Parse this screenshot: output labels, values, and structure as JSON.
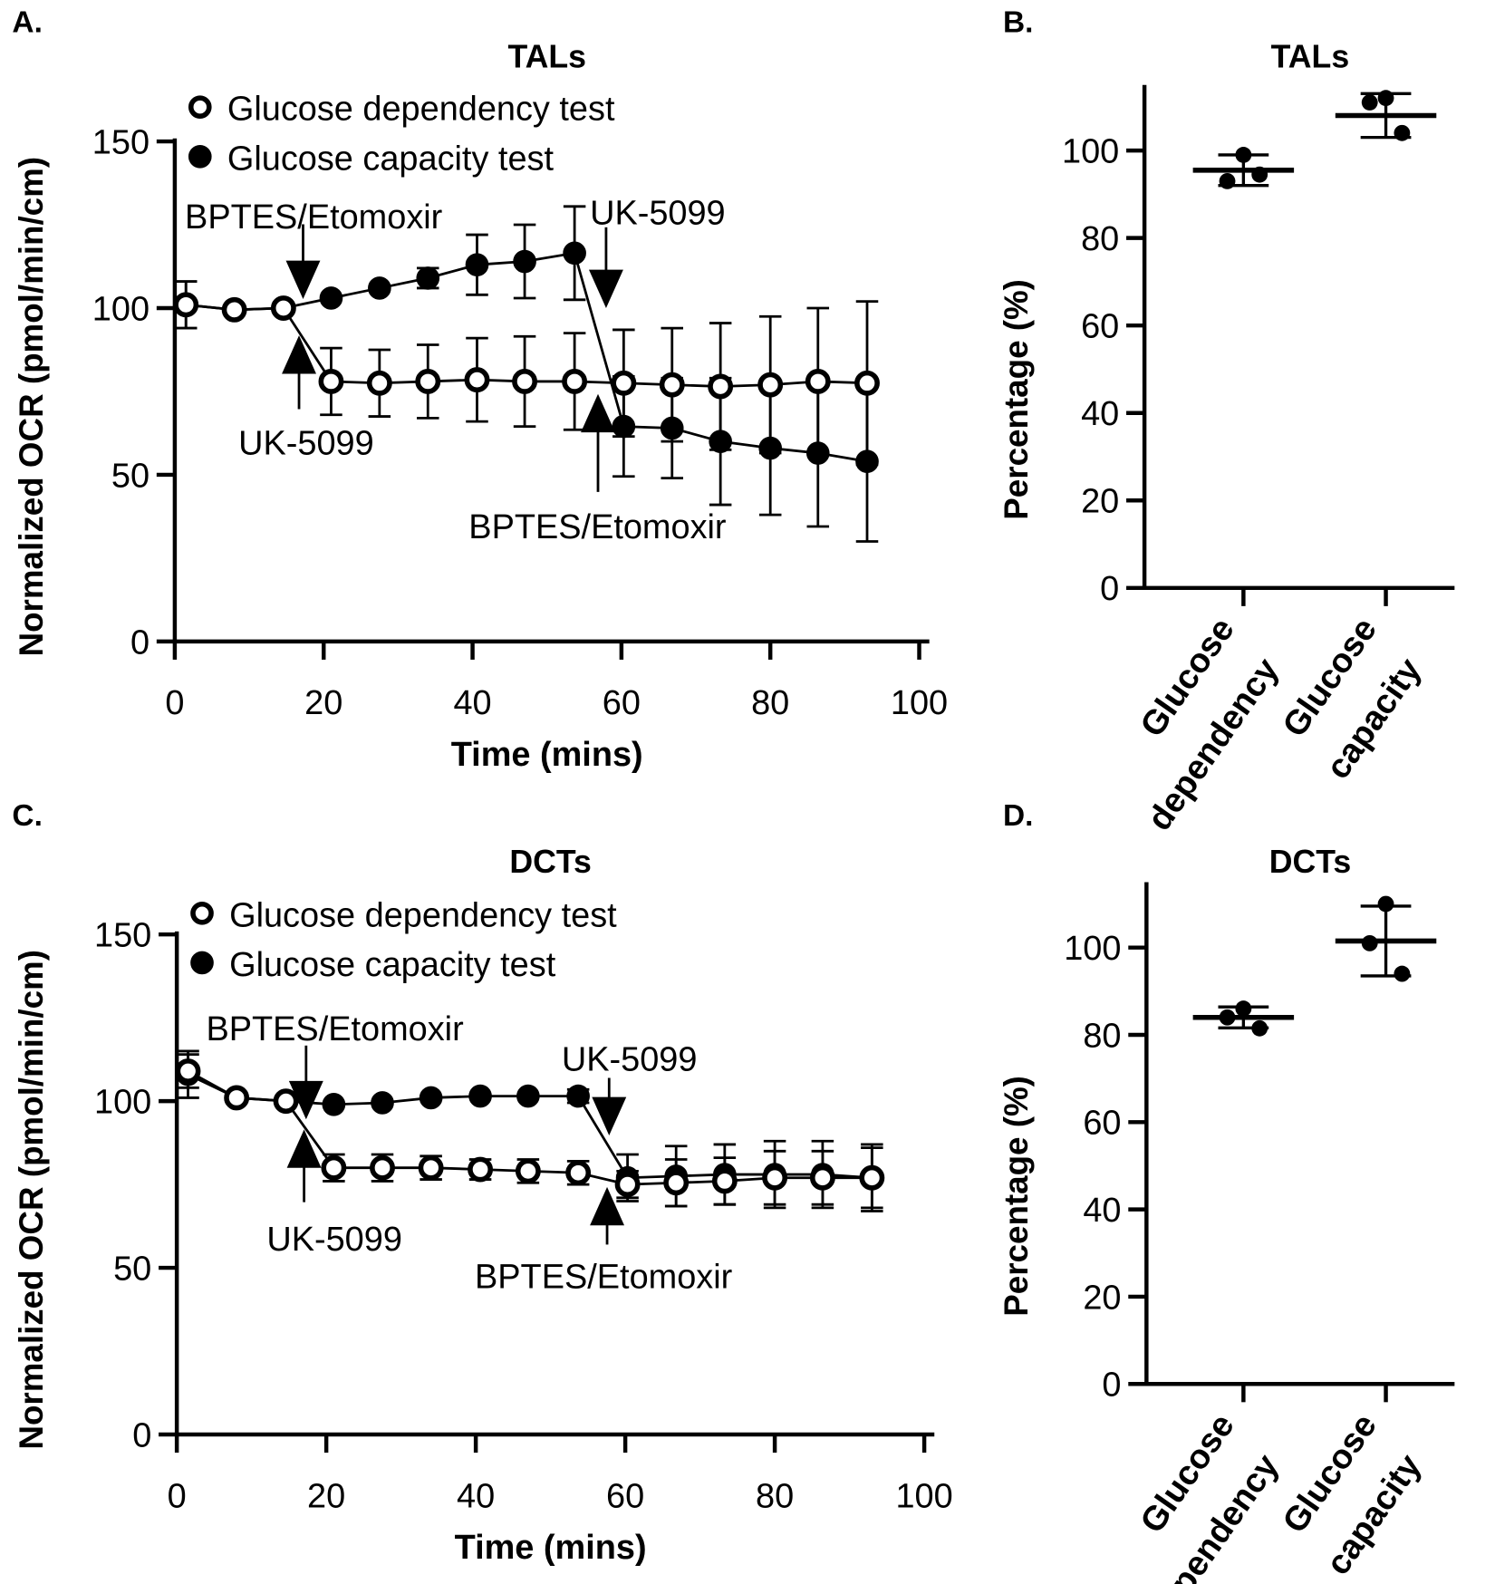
{
  "chart_data": [
    {
      "panel": "A.",
      "type": "line",
      "title": "TALs",
      "xlabel": "Time (mins)",
      "ylabel": "Normalized OCR (pmol/min/cm)",
      "xlim": [
        0,
        100
      ],
      "ylim": [
        0,
        150
      ],
      "xticks": [
        "0",
        "20",
        "40",
        "60",
        "80",
        "100"
      ],
      "yticks": [
        "0",
        "50",
        "100",
        "150"
      ],
      "x": [
        1.5,
        8,
        14.6,
        21,
        27.5,
        34,
        40.6,
        47,
        53.7,
        60.3,
        66.8,
        73.3,
        80,
        86.4,
        93
      ],
      "series": [
        {
          "name": "Glucose capacity test",
          "marker": "filled",
          "values": [
            101,
            99.5,
            100,
            103,
            106,
            109,
            113,
            114,
            116.5,
            64.5,
            64,
            60,
            58,
            56.5,
            54
          ],
          "errors": [
            7,
            1,
            1,
            1,
            1,
            3,
            9,
            11,
            14,
            15,
            15,
            19,
            20,
            22,
            24
          ]
        },
        {
          "name": "Glucose dependency test",
          "marker": "open",
          "values": [
            101,
            99.5,
            100,
            78,
            77.5,
            78,
            78.5,
            78,
            78,
            77.5,
            77,
            76.5,
            77,
            78,
            77.5
          ],
          "errors": [
            7,
            1,
            1,
            10,
            10,
            11,
            12.5,
            13.5,
            14.5,
            16,
            17,
            19,
            20.5,
            22,
            24.5
          ]
        }
      ],
      "annotations": [
        "BPTES/Etomoxir",
        "UK-5099",
        "UK-5099",
        "BPTES/Etomoxir"
      ]
    },
    {
      "panel": "B.",
      "type": "scatter",
      "title": "TALs",
      "ylabel": "Percentage (%)",
      "ylim": [
        0,
        115
      ],
      "yticks": [
        "0",
        "20",
        "40",
        "60",
        "80",
        "100"
      ],
      "categories": [
        [
          "Glucose",
          "dependency"
        ],
        [
          "Glucose",
          "capacity"
        ]
      ],
      "points": [
        [
          99,
          93,
          94.5
        ],
        [
          112,
          111,
          104
        ]
      ],
      "means": [
        95.5,
        108
      ],
      "sd": [
        3.5,
        5
      ]
    },
    {
      "panel": "C.",
      "type": "line",
      "title": "DCTs",
      "xlabel": "Time (mins)",
      "ylabel": "Normalized OCR (pmol/min/cm)",
      "xlim": [
        0,
        100
      ],
      "ylim": [
        0,
        150
      ],
      "xticks": [
        "0",
        "20",
        "40",
        "60",
        "80",
        "100"
      ],
      "yticks": [
        "0",
        "50",
        "100",
        "150"
      ],
      "x": [
        1.5,
        8,
        14.6,
        21,
        27.5,
        34,
        40.6,
        47,
        53.7,
        60.3,
        66.8,
        73.3,
        80,
        86.4,
        93
      ],
      "series": [
        {
          "name": "Glucose capacity test",
          "marker": "filled",
          "values": [
            108,
            101,
            100,
            99,
            99.5,
            101,
            101.5,
            101.5,
            101.5,
            77,
            77.5,
            78,
            78,
            78,
            77
          ],
          "errors": [
            7,
            1,
            1,
            1,
            1,
            1,
            1,
            1,
            2,
            7,
            9,
            9,
            10,
            10,
            10
          ]
        },
        {
          "name": "Glucose dependency test",
          "marker": "open",
          "values": [
            109,
            101,
            100,
            80,
            80,
            80,
            79.5,
            79,
            78.5,
            75,
            75.5,
            76,
            77,
            77,
            77
          ],
          "errors": [
            5,
            1,
            1,
            4,
            4,
            3.5,
            3,
            3.5,
            3.5,
            4,
            7,
            7,
            8,
            8,
            9
          ]
        }
      ],
      "annotations": [
        "BPTES/Etomoxir",
        "UK-5099",
        "UK-5099",
        "BPTES/Etomoxir"
      ]
    },
    {
      "panel": "D.",
      "type": "scatter",
      "title": "DCTs",
      "ylabel": "Percentage (%)",
      "ylim": [
        0,
        115
      ],
      "yticks": [
        "0",
        "20",
        "40",
        "60",
        "80",
        "100"
      ],
      "categories": [
        [
          "Glucose",
          "dependency"
        ],
        [
          "Glucose",
          "capacity"
        ]
      ],
      "points": [
        [
          86,
          84,
          81.5
        ],
        [
          110,
          101,
          94
        ]
      ],
      "means": [
        84,
        101.5
      ],
      "sd": [
        2.4,
        8
      ]
    }
  ]
}
